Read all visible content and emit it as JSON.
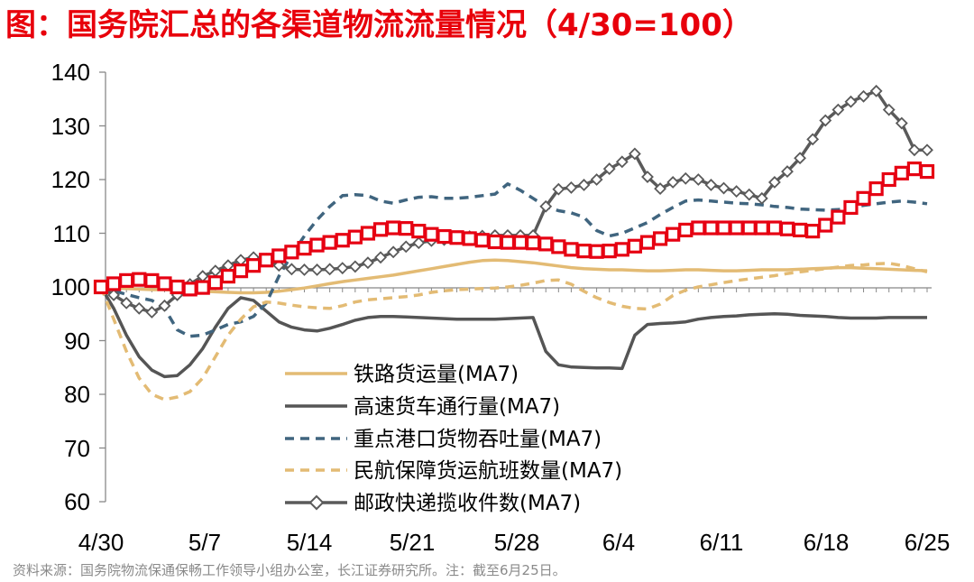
{
  "title": "图：国务院汇总的各渠道物流流量情况（4/30=100）",
  "source": "资料来源：国务院物流保通保畅工作领导小组办公室，长江证券研究所。注：截至6月25日。",
  "chart_data": {
    "type": "line",
    "ylim": [
      60,
      140
    ],
    "yticks": [
      "140",
      "130",
      "120",
      "110",
      "100",
      "90",
      "80",
      "70",
      "60"
    ],
    "xticks": [
      "4/30",
      "5/7",
      "5/14",
      "5/21",
      "5/28",
      "6/4",
      "6/11",
      "6/18",
      "6/25"
    ],
    "grid": false,
    "legend_position": "bottom-center",
    "series": [
      {
        "name": "铁路货运量(MA7)",
        "color": "#e3bb74",
        "style": "solid",
        "values": [
          100,
          99.8,
          99.7,
          99.6,
          99.5,
          99.5,
          99.4,
          99.3,
          99.2,
          99.1,
          99,
          98.9,
          98.9,
          99,
          99.2,
          99.5,
          99.8,
          100.2,
          100.6,
          101,
          101.3,
          101.6,
          101.9,
          102.2,
          102.6,
          103,
          103.4,
          103.8,
          104.2,
          104.6,
          104.9,
          105,
          104.9,
          104.7,
          104.5,
          104.2,
          103.9,
          103.6,
          103.4,
          103.3,
          103.2,
          103.2,
          103.1,
          103,
          103,
          103.1,
          103.2,
          103.2,
          103.1,
          103,
          103,
          103.1,
          103.2,
          103.2,
          103.2,
          103.3,
          103.4,
          103.5,
          103.6,
          103.6,
          103.5,
          103.4,
          103.3,
          103.2,
          103.1,
          103
        ]
      },
      {
        "name": "高速货车通行量(MA7)",
        "color": "#555555",
        "style": "solid",
        "values": [
          100,
          96,
          91,
          87,
          84.5,
          83.3,
          83.5,
          85.5,
          88.5,
          92.5,
          96,
          98,
          97.5,
          95.5,
          93.5,
          92.5,
          92,
          91.8,
          92.3,
          93,
          93.8,
          94.3,
          94.5,
          94.5,
          94.4,
          94.3,
          94.2,
          94.1,
          94,
          94,
          94,
          94,
          94.1,
          94.2,
          94.3,
          88,
          85.5,
          85.1,
          85,
          84.9,
          84.9,
          84.8,
          91,
          93,
          93.2,
          93.3,
          93.5,
          94,
          94.3,
          94.5,
          94.6,
          94.8,
          94.9,
          95,
          94.9,
          94.7,
          94.6,
          94.5,
          94.3,
          94.2,
          94.2,
          94.2,
          94.3,
          94.3,
          94.3,
          94.3
        ]
      },
      {
        "name": "重点港口货物吞吐量(MA7)",
        "color": "#40657f",
        "style": "dashed",
        "values": [
          100,
          99.3,
          98.6,
          98,
          97.5,
          96,
          92,
          90.8,
          91,
          92,
          93,
          93.5,
          94.5,
          97,
          102,
          106,
          109.5,
          112.5,
          115,
          117,
          117.2,
          117,
          116,
          115.6,
          116.2,
          116.7,
          116.8,
          116.5,
          116.5,
          116.7,
          117,
          117.3,
          119.2,
          118,
          116.5,
          115,
          114.2,
          113.8,
          113,
          110.5,
          109.5,
          110,
          111,
          112,
          113.5,
          114.8,
          116,
          116.2,
          116,
          115.8,
          115.6,
          115.5,
          115.3,
          115,
          114.8,
          114.5,
          114.4,
          114.3,
          114.4,
          114.8,
          115.2,
          115.5,
          115.8,
          116,
          115.8,
          115.5
        ]
      },
      {
        "name": "民航保障货运航班数量(MA7)",
        "color": "#e3bb74",
        "style": "dashed",
        "values": [
          100,
          94,
          88,
          83,
          80,
          79,
          79.5,
          80.5,
          83,
          87,
          91,
          94,
          96.3,
          97.2,
          97,
          96.6,
          96.3,
          96.1,
          96,
          96.5,
          97.2,
          97.6,
          97.8,
          98,
          98.2,
          98.5,
          99,
          99.3,
          99.5,
          99.6,
          99.7,
          99.8,
          100,
          100.3,
          100.7,
          101.2,
          101.3,
          100.5,
          99.2,
          98,
          97.1,
          96.4,
          96,
          95.9,
          96.8,
          98.4,
          99.4,
          100,
          100.4,
          100.8,
          101.2,
          101.5,
          101.8,
          102.1,
          102.5,
          102.8,
          103.1,
          103.4,
          103.7,
          104,
          104.1,
          104.3,
          104.4,
          104,
          103.4,
          102.8
        ]
      },
      {
        "name": "邮政快递揽收件数(MA7)",
        "color": "#5a5a5a",
        "style": "marker",
        "values": [
          100,
          98.5,
          97,
          96,
          95.3,
          96.5,
          98.5,
          100.5,
          102,
          103,
          104,
          105,
          105.5,
          105.2,
          104,
          103.3,
          103.2,
          103.2,
          103.3,
          103.5,
          103.8,
          104.5,
          105.5,
          106.5,
          107.5,
          108.2,
          108.6,
          108.8,
          109,
          109.4,
          109.5,
          109.6,
          109.6,
          109.6,
          109.6,
          115,
          118.2,
          118.5,
          119,
          120,
          122,
          123.3,
          124.8,
          120.5,
          118.3,
          119.5,
          120.2,
          120,
          119,
          118.4,
          117.8,
          117.2,
          116.5,
          119.5,
          121.5,
          124,
          127.5,
          131,
          133,
          134.5,
          135.5,
          136.5,
          133,
          130.5,
          125.5,
          125.5
        ]
      },
      {
        "name": "",
        "color": "#e60012",
        "style": "square-marker",
        "values": [
          100,
          100.6,
          101.2,
          101.4,
          101.2,
          100.6,
          100,
          99.6,
          99.9,
          100.8,
          102,
          103,
          104,
          105,
          105.8,
          106.5,
          107.2,
          107.8,
          108.3,
          108.7,
          109.3,
          110,
          110.7,
          111,
          110.9,
          110.4,
          109.8,
          109.4,
          109.2,
          109,
          108.7,
          108.4,
          108.3,
          108.3,
          108.2,
          108,
          107.5,
          107,
          106.7,
          106.6,
          106.7,
          107,
          107.6,
          108.3,
          109,
          109.8,
          110.6,
          111,
          111,
          111,
          111,
          111,
          111,
          111,
          110.8,
          110.6,
          110.4,
          111.5,
          113,
          114.8,
          116.5,
          118.3,
          120,
          121.2,
          122,
          121.5
        ]
      }
    ]
  }
}
